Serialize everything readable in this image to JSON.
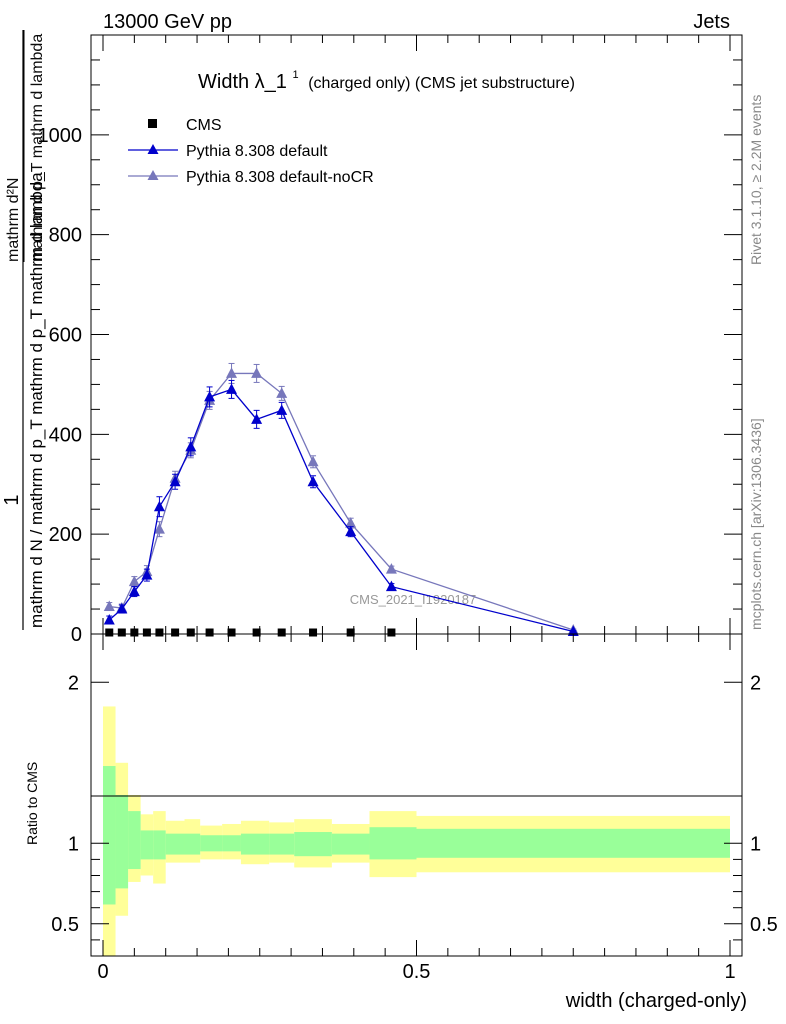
{
  "header": {
    "left": "13000 GeV pp",
    "right": "Jets"
  },
  "side_labels": {
    "rivet": "Rivet 3.1.10, ≥ 2.2M events",
    "mcplots": "mcplots.cern.ch [arXiv:1306.3436]"
  },
  "chart_data": [
    {
      "type": "line",
      "panel": "main",
      "title_main": "Width λ_1",
      "title_sup": "1",
      "title_rest": "(charged only) (CMS jet substructure)",
      "watermark": "CMS_2021_I1920187",
      "ylabel_numerator": "1",
      "ylabel_denominator": "mathrm d N / mathrm d p_T mathrm d p_T mathrm d lambda",
      "ylabel_top_num": "mathrm d²N",
      "ylabel_top_den": "mathrm d p_T mathrm d lambda",
      "xlabel": "width (charged-only)",
      "xlim": [
        0,
        1
      ],
      "ylim": [
        0,
        1200
      ],
      "yticks": [
        0,
        200,
        400,
        600,
        800,
        1000
      ],
      "xticks": [
        0,
        0.5,
        1
      ],
      "xtick_labels": [
        "0",
        "0.5",
        "1"
      ],
      "legend_position": "top-left",
      "series": [
        {
          "name": "CMS",
          "marker": "square",
          "color": "#000000",
          "x": [
            0.01,
            0.03,
            0.05,
            0.07,
            0.09,
            0.115,
            0.14,
            0.17,
            0.205,
            0.245,
            0.285,
            0.335,
            0.395,
            0.46
          ],
          "y": [
            1,
            1,
            1,
            1,
            1,
            1,
            1,
            1,
            1,
            1,
            1,
            1,
            1,
            1
          ]
        },
        {
          "name": "Pythia 8.308 default",
          "marker": "triangle",
          "color": "#0000cc",
          "x": [
            0.01,
            0.03,
            0.05,
            0.07,
            0.09,
            0.115,
            0.14,
            0.17,
            0.205,
            0.245,
            0.285,
            0.335,
            0.395,
            0.46,
            0.75
          ],
          "y": [
            28,
            50,
            85,
            118,
            255,
            305,
            375,
            475,
            490,
            430,
            448,
            305,
            205,
            95,
            5
          ],
          "err": [
            8,
            8,
            10,
            12,
            20,
            15,
            18,
            20,
            18,
            18,
            16,
            12,
            10,
            6,
            2
          ]
        },
        {
          "name": "Pythia 8.308 default-noCR",
          "marker": "triangle",
          "color": "#7777bb",
          "x": [
            0.01,
            0.03,
            0.05,
            0.07,
            0.09,
            0.115,
            0.14,
            0.17,
            0.205,
            0.245,
            0.285,
            0.335,
            0.395,
            0.46,
            0.75
          ],
          "y": [
            55,
            52,
            105,
            125,
            210,
            312,
            368,
            468,
            522,
            522,
            482,
            345,
            222,
            130,
            8
          ],
          "err": [
            8,
            8,
            10,
            12,
            15,
            14,
            15,
            18,
            20,
            18,
            14,
            12,
            10,
            6,
            2
          ]
        }
      ]
    },
    {
      "type": "band",
      "panel": "ratio",
      "ylabel": "Ratio to CMS",
      "ylim": [
        0.3,
        2.3
      ],
      "yticks": [
        0.5,
        1,
        2
      ],
      "ytick_labels": [
        "0.5",
        "1",
        "2"
      ],
      "bins": [
        {
          "x0": 0.0,
          "x1": 0.02,
          "inner": [
            0.62,
            1.48
          ],
          "outer": [
            0.3,
            1.85
          ]
        },
        {
          "x0": 0.02,
          "x1": 0.04,
          "inner": [
            0.72,
            1.3
          ],
          "outer": [
            0.55,
            1.5
          ]
        },
        {
          "x0": 0.04,
          "x1": 0.06,
          "inner": [
            0.84,
            1.2
          ],
          "outer": [
            0.76,
            1.3
          ]
        },
        {
          "x0": 0.06,
          "x1": 0.08,
          "inner": [
            0.9,
            1.08
          ],
          "outer": [
            0.8,
            1.18
          ]
        },
        {
          "x0": 0.08,
          "x1": 0.1,
          "inner": [
            0.9,
            1.08
          ],
          "outer": [
            0.75,
            1.2
          ]
        },
        {
          "x0": 0.1,
          "x1": 0.13,
          "inner": [
            0.93,
            1.06
          ],
          "outer": [
            0.88,
            1.14
          ]
        },
        {
          "x0": 0.13,
          "x1": 0.155,
          "inner": [
            0.93,
            1.06
          ],
          "outer": [
            0.88,
            1.15
          ]
        },
        {
          "x0": 0.155,
          "x1": 0.19,
          "inner": [
            0.95,
            1.05
          ],
          "outer": [
            0.9,
            1.11
          ]
        },
        {
          "x0": 0.19,
          "x1": 0.22,
          "inner": [
            0.95,
            1.05
          ],
          "outer": [
            0.9,
            1.12
          ]
        },
        {
          "x0": 0.22,
          "x1": 0.265,
          "inner": [
            0.93,
            1.06
          ],
          "outer": [
            0.87,
            1.14
          ]
        },
        {
          "x0": 0.265,
          "x1": 0.305,
          "inner": [
            0.93,
            1.06
          ],
          "outer": [
            0.88,
            1.13
          ]
        },
        {
          "x0": 0.305,
          "x1": 0.365,
          "inner": [
            0.92,
            1.07
          ],
          "outer": [
            0.85,
            1.15
          ]
        },
        {
          "x0": 0.365,
          "x1": 0.425,
          "inner": [
            0.93,
            1.06
          ],
          "outer": [
            0.88,
            1.12
          ]
        },
        {
          "x0": 0.425,
          "x1": 0.5,
          "inner": [
            0.9,
            1.1
          ],
          "outer": [
            0.79,
            1.2
          ]
        },
        {
          "x0": 0.5,
          "x1": 1.0,
          "inner": [
            0.91,
            1.09
          ],
          "outer": [
            0.82,
            1.17
          ]
        }
      ],
      "inner_color": "#99ff99",
      "outer_color": "#ffff99"
    }
  ]
}
